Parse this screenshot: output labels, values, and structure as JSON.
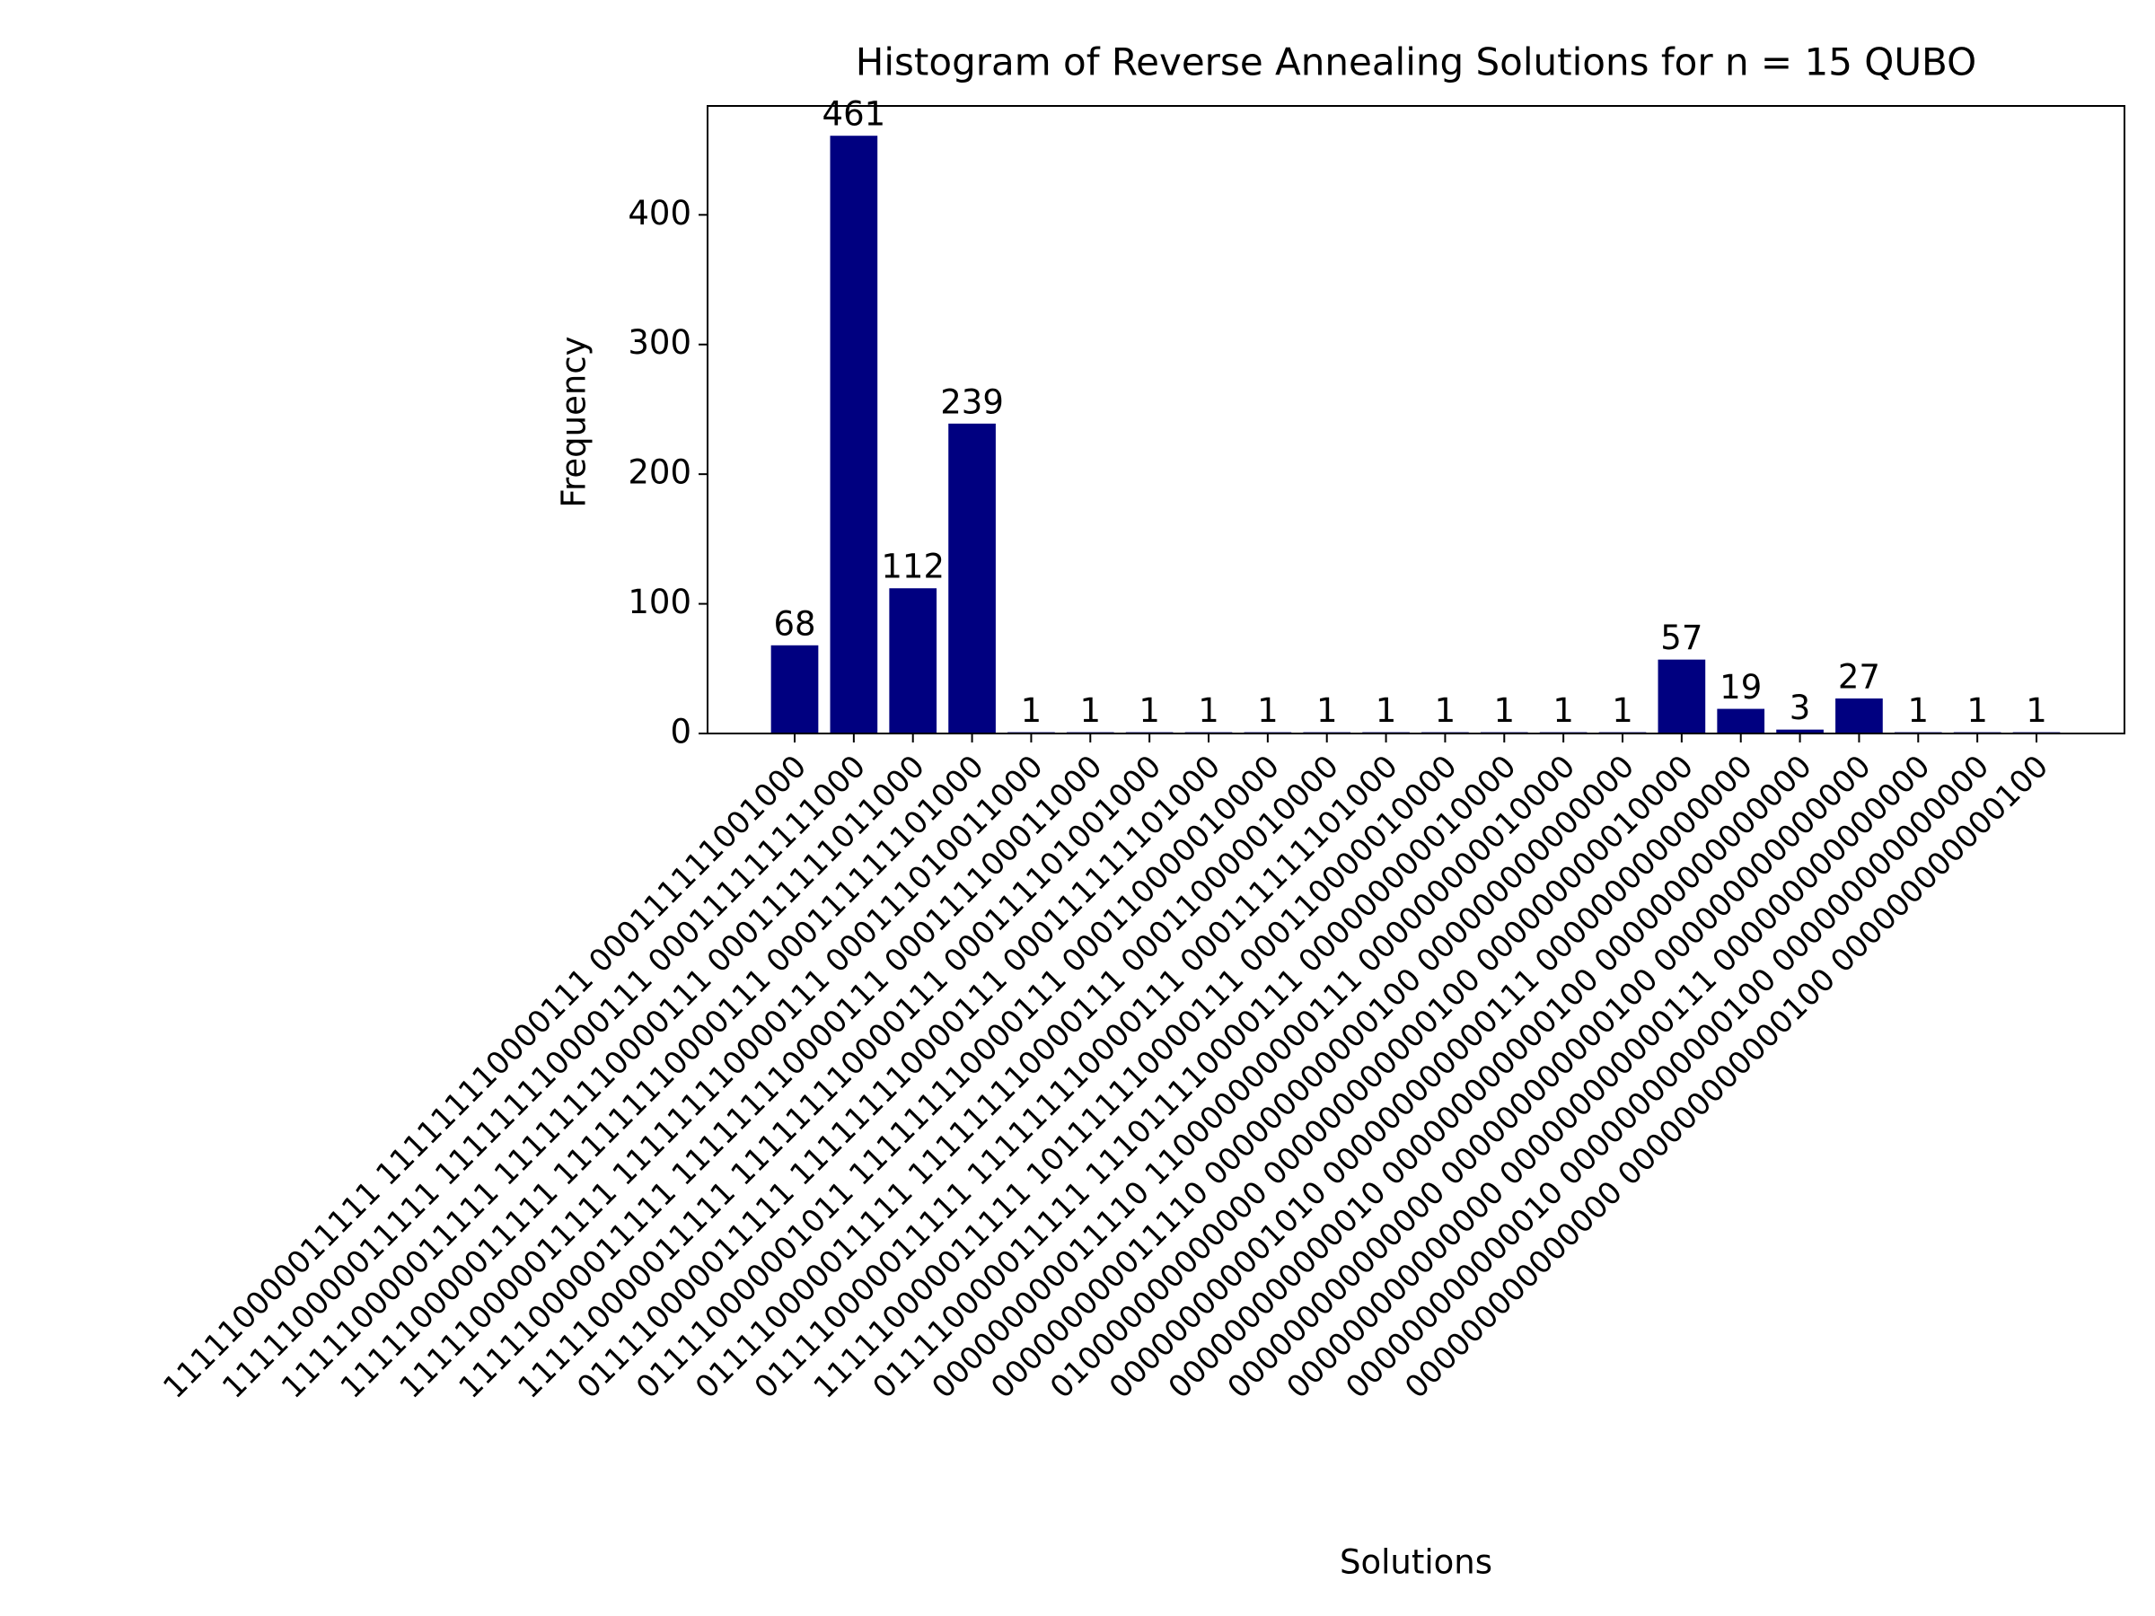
{
  "chart_data": {
    "type": "bar",
    "title": "Histogram of Reverse Annealing Solutions for n = 15 QUBO",
    "x_label": "Solutions",
    "y_label": "Frequency",
    "color": "#000080",
    "categories": [
      "111110000011111 111111110000111 000111111001000",
      "111110000011111 111111110000111 000111111111000",
      "111110000011111 111111110000111 000111111011000",
      "111110000011111 111111110000111 000111111101000",
      "111110000011111 111111110000111 000111010011000",
      "111110000011111 111111110000111 000111100011000",
      "111110000011111 111111110000111 000111101001000",
      "011110000011111 111111110000111 000111111101000",
      "011110000001011 111111110000111 000110000010000",
      "011110000011111 111111110000111 000110000010000",
      "011110000011111 111111110000111 000111111101000",
      "111110000011111 101111110000111 000110000010000",
      "011110000011111 111011110000111 000000000010000",
      "000000000011110 110000000000111 000000000010000",
      "000000000011110 000000000000100 000000000000000",
      "010000000000000 000000000000100 000000000010000",
      "000000000001010 000000000000111 000000000000000",
      "000000000000010 000000000000100 000000000000000",
      "000000000000000 000000000000100 000000000000000",
      "000000000000000 000000000000111 000000000000000",
      "000000000000010 000000000000100 000000000000000",
      "000000000000000 000000000000100 000000000000100"
    ],
    "values": [
      68,
      461,
      112,
      239,
      1,
      1,
      1,
      1,
      1,
      1,
      1,
      1,
      1,
      1,
      1,
      57,
      19,
      3,
      27,
      1,
      1,
      1
    ],
    "ylim": [
      0,
      484
    ],
    "yticks": [
      0,
      100,
      200,
      300,
      400
    ]
  }
}
